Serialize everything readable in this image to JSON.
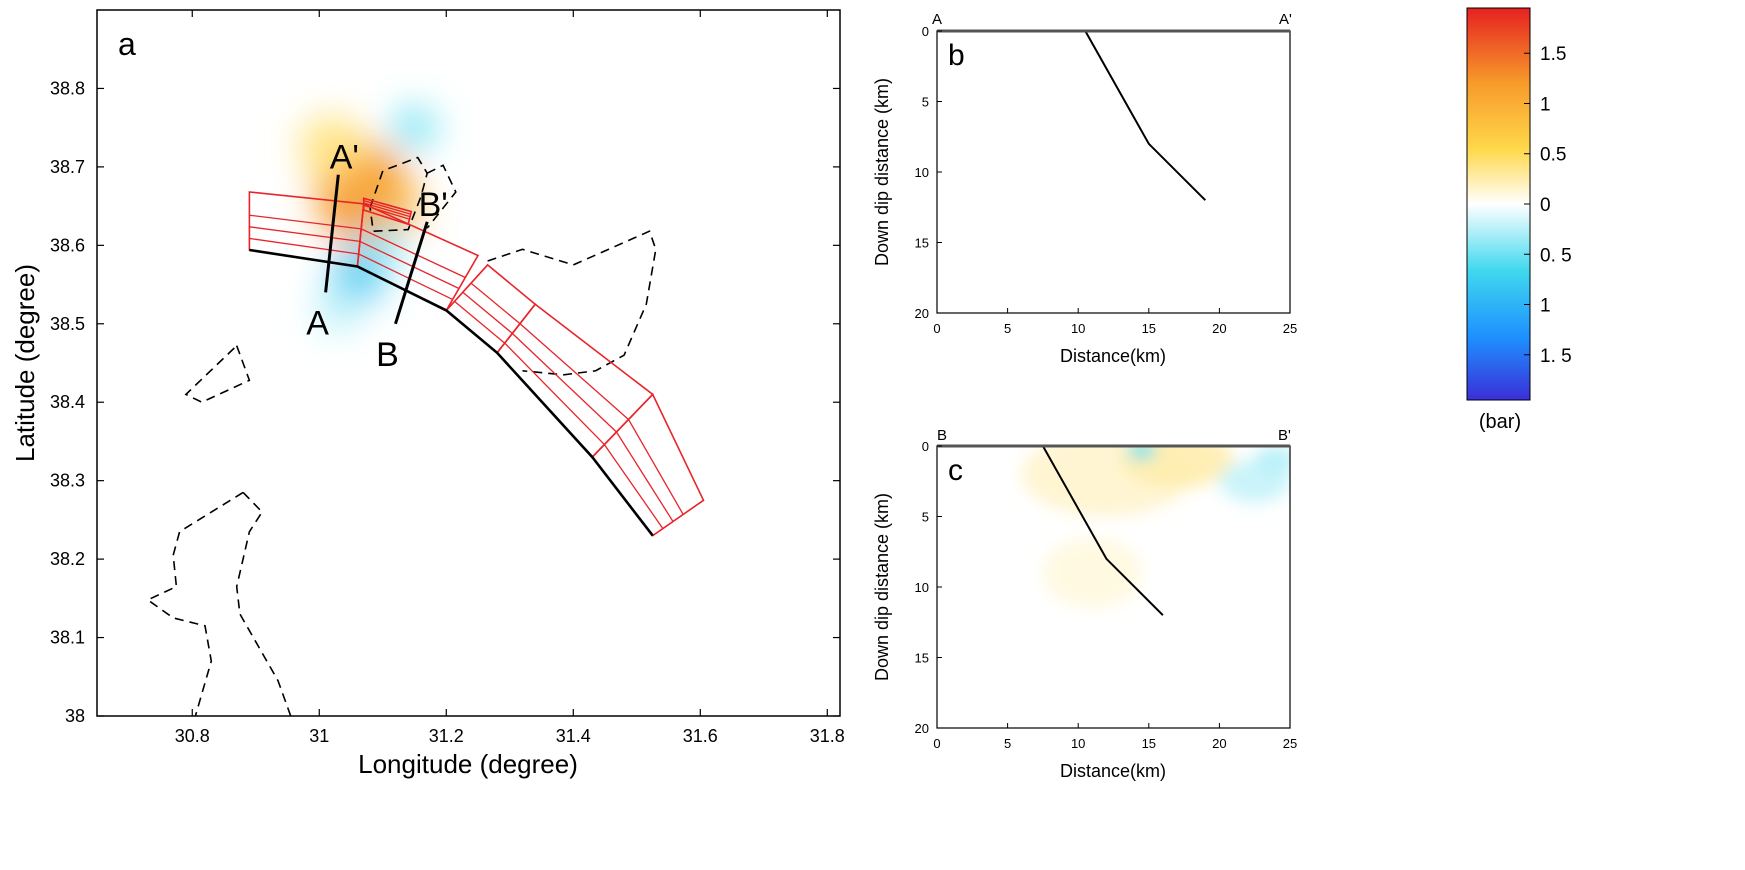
{
  "chart_data": [
    {
      "panel": "a",
      "type": "map",
      "xlabel": "Longitude (degree)",
      "ylabel": "Latitude  (degree)",
      "xlim": [
        30.65,
        31.82
      ],
      "ylim": [
        38.0,
        38.9
      ],
      "xticks": [
        30.8,
        31,
        31.2,
        31.4,
        31.6,
        31.8
      ],
      "yticks": [
        38,
        38.1,
        38.2,
        38.3,
        38.4,
        38.5,
        38.6,
        38.7,
        38.8
      ],
      "profiles": [
        {
          "start_label": "A",
          "end_label": "A'",
          "start": [
            31.01,
            38.54
          ],
          "end": [
            31.03,
            38.69
          ]
        },
        {
          "start_label": "B",
          "end_label": "B'",
          "start": [
            31.12,
            38.5
          ],
          "end": [
            31.17,
            38.63
          ]
        }
      ],
      "fault_trace": [
        [
          30.89,
          38.594
        ],
        [
          31.06,
          38.573
        ],
        [
          31.2,
          38.517
        ],
        [
          31.28,
          38.463
        ],
        [
          31.43,
          38.33
        ],
        [
          31.525,
          38.23
        ]
      ],
      "fault_segments": [
        [
          [
            30.89,
            38.594
          ],
          [
            31.06,
            38.573
          ],
          [
            31.07,
            38.653
          ],
          [
            30.89,
            38.668
          ]
        ],
        [
          [
            31.06,
            38.573
          ],
          [
            31.2,
            38.517
          ],
          [
            31.25,
            38.587
          ],
          [
            31.07,
            38.653
          ]
        ],
        [
          [
            31.2,
            38.517
          ],
          [
            31.28,
            38.463
          ],
          [
            31.34,
            38.525
          ],
          [
            31.265,
            38.575
          ]
        ],
        [
          [
            31.28,
            38.463
          ],
          [
            31.43,
            38.33
          ],
          [
            31.525,
            38.41
          ],
          [
            31.34,
            38.525
          ]
        ],
        [
          [
            31.43,
            38.33
          ],
          [
            31.525,
            38.23
          ],
          [
            31.605,
            38.275
          ],
          [
            31.525,
            38.41
          ]
        ],
        [
          [
            31.07,
            38.66
          ],
          [
            31.145,
            38.643
          ],
          [
            31.14,
            38.627
          ],
          [
            31.07,
            38.645
          ]
        ]
      ],
      "dashed_regions": [
        [
          [
            31.08,
            38.648
          ],
          [
            31.1,
            38.695
          ],
          [
            31.155,
            38.712
          ],
          [
            31.17,
            38.692
          ],
          [
            31.16,
            38.662
          ],
          [
            31.14,
            38.62
          ],
          [
            31.085,
            38.618
          ],
          [
            31.08,
            38.648
          ]
        ],
        [
          [
            31.17,
            38.692
          ],
          [
            31.195,
            38.702
          ],
          [
            31.215,
            38.668
          ],
          [
            31.17,
            38.622
          ]
        ],
        [
          [
            31.265,
            38.58
          ],
          [
            31.32,
            38.595
          ],
          [
            31.4,
            38.575
          ],
          [
            31.52,
            38.618
          ],
          [
            31.53,
            38.595
          ],
          [
            31.515,
            38.525
          ],
          [
            31.48,
            38.46
          ],
          [
            31.435,
            38.44
          ],
          [
            31.385,
            38.435
          ],
          [
            31.32,
            38.44
          ]
        ],
        [
          [
            30.87,
            38.472
          ],
          [
            30.89,
            38.428
          ],
          [
            30.815,
            38.4
          ],
          [
            30.79,
            38.41
          ],
          [
            30.87,
            38.472
          ]
        ],
        [
          [
            30.88,
            38.285
          ],
          [
            30.91,
            38.26
          ],
          [
            30.89,
            38.235
          ],
          [
            30.87,
            38.165
          ],
          [
            30.875,
            38.13
          ],
          [
            30.935,
            38.045
          ],
          [
            30.955,
            38.0
          ]
        ],
        [
          [
            30.88,
            38.285
          ],
          [
            30.78,
            38.235
          ],
          [
            30.77,
            38.205
          ],
          [
            30.775,
            38.165
          ],
          [
            30.73,
            38.148
          ],
          [
            30.77,
            38.125
          ],
          [
            30.82,
            38.115
          ],
          [
            30.83,
            38.07
          ],
          [
            30.805,
            38.0
          ]
        ]
      ],
      "stress_blobs": [
        {
          "center": [
            31.07,
            38.665
          ],
          "radius_deg": [
            0.075,
            0.065
          ],
          "value_bar": 1.2
        },
        {
          "center": [
            31.12,
            38.645
          ],
          "radius_deg": [
            0.04,
            0.03
          ],
          "value_bar": 0.9
        },
        {
          "center": [
            31.02,
            38.725
          ],
          "radius_deg": [
            0.05,
            0.04
          ],
          "value_bar": 0.4
        },
        {
          "center": [
            31.15,
            38.75
          ],
          "radius_deg": [
            0.035,
            0.025
          ],
          "value_bar": -0.5
        },
        {
          "center": [
            31.06,
            38.56
          ],
          "radius_deg": [
            0.04,
            0.035
          ],
          "value_bar": -0.8
        },
        {
          "center": [
            31.03,
            38.52
          ],
          "radius_deg": [
            0.035,
            0.03
          ],
          "value_bar": -0.25
        },
        {
          "center": [
            31.1,
            38.6
          ],
          "radius_deg": [
            0.03,
            0.03
          ],
          "value_bar": -0.4
        }
      ]
    },
    {
      "panel": "b",
      "type": "line",
      "start_label": "A",
      "end_label": "A'",
      "xlabel": "Distance(km)",
      "ylabel": "Down dip distance (km)",
      "xlim": [
        0,
        25
      ],
      "ylim": [
        20,
        0
      ],
      "xticks": [
        0,
        5,
        10,
        15,
        20,
        25
      ],
      "yticks": [
        0,
        5,
        10,
        15,
        20
      ],
      "series": [
        {
          "x": [
            10.5,
            15,
            19
          ],
          "y": [
            0,
            8,
            12
          ]
        }
      ]
    },
    {
      "panel": "c",
      "type": "line",
      "start_label": "B",
      "end_label": "B'",
      "xlabel": "Distance(km)",
      "ylabel": "Down dip distance (km)",
      "xlim": [
        0,
        25
      ],
      "ylim": [
        20,
        0
      ],
      "xticks": [
        0,
        5,
        10,
        15,
        20,
        25
      ],
      "yticks": [
        0,
        5,
        10,
        15,
        20
      ],
      "series": [
        {
          "x": [
            7.5,
            12,
            16
          ],
          "y": [
            0,
            8,
            12
          ]
        }
      ],
      "stress_blobs": [
        {
          "center": [
            12,
            2
          ],
          "radius": [
            6,
            3
          ],
          "value_bar": 0.15
        },
        {
          "center": [
            17,
            1
          ],
          "radius": [
            4,
            2
          ],
          "value_bar": 0.25
        },
        {
          "center": [
            11,
            9
          ],
          "radius": [
            3.5,
            2.5
          ],
          "value_bar": 0.1
        },
        {
          "center": [
            14.5,
            0.3
          ],
          "radius": [
            1,
            0.7
          ],
          "value_bar": -0.5
        },
        {
          "center": [
            22.5,
            2.5
          ],
          "radius": [
            2.5,
            1.5
          ],
          "value_bar": -0.2
        },
        {
          "center": [
            24,
            1
          ],
          "radius": [
            1.5,
            1
          ],
          "value_bar": -0.25
        }
      ]
    }
  ],
  "colorbar": {
    "unit_label": "(bar)",
    "tick_labels": [
      "1.5",
      "1",
      "0.5",
      "0",
      "0. 5",
      "1",
      "1. 5"
    ],
    "tick_values": [
      1.5,
      1,
      0.5,
      0,
      -0.5,
      -1,
      -1.5
    ],
    "range": [
      -1.95,
      1.95
    ],
    "colors": [
      "#3a2fd8",
      "#1e90ff",
      "#40d8ee",
      "#ffffff",
      "#ffd84a",
      "#f79a2a",
      "#e62121"
    ]
  }
}
